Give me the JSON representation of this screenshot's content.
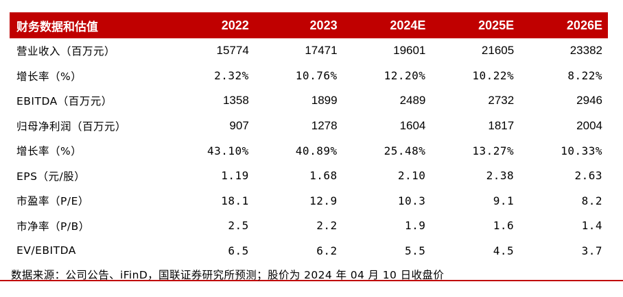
{
  "header": {
    "title": "财务数据和估值",
    "years": [
      "2022",
      "2023",
      "2024E",
      "2025E",
      "2026E"
    ]
  },
  "rows": [
    {
      "label": "营业收入（百万元）",
      "values": [
        "15774",
        "17471",
        "19601",
        "21605",
        "23382"
      ],
      "mono": false
    },
    {
      "label": "增长率（%）",
      "values": [
        "2.32%",
        "10.76%",
        "12.20%",
        "10.22%",
        "8.22%"
      ],
      "mono": true
    },
    {
      "label": "EBITDA（百万元）",
      "values": [
        "1358",
        "1899",
        "2489",
        "2732",
        "2946"
      ],
      "mono": false
    },
    {
      "label": "归母净利润（百万元）",
      "values": [
        "907",
        "1278",
        "1604",
        "1817",
        "2004"
      ],
      "mono": false
    },
    {
      "label": "增长率（%）",
      "values": [
        "43.10%",
        "40.89%",
        "25.48%",
        "13.27%",
        "10.33%"
      ],
      "mono": true
    },
    {
      "label": "EPS（元/股）",
      "values": [
        "1.19",
        "1.68",
        "2.10",
        "2.38",
        "2.63"
      ],
      "mono": true
    },
    {
      "label": "市盈率（P/E）",
      "values": [
        "18.1",
        "12.9",
        "10.3",
        "9.1",
        "8.2"
      ],
      "mono": true
    },
    {
      "label": "市净率（P/B）",
      "values": [
        "2.5",
        "2.2",
        "1.9",
        "1.6",
        "1.4"
      ],
      "mono": true
    },
    {
      "label": "EV/EBITDA",
      "values": [
        "6.5",
        "6.2",
        "5.5",
        "4.5",
        "3.7"
      ],
      "mono": true
    }
  ],
  "source": "数据来源：公司公告、iFinD，国联证券研究所预测；股价为 2024 年 04 月 10 日收盘价",
  "colors": {
    "accent": "#c00000"
  }
}
